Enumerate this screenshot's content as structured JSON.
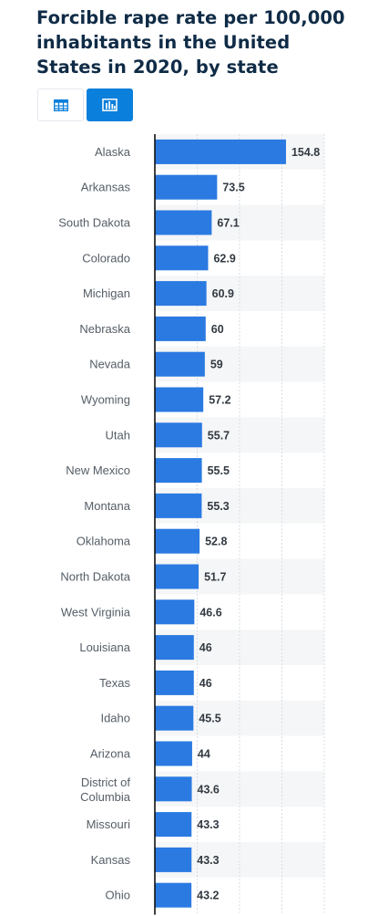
{
  "title": "Forcible rape rate per 100,000 inhabitants in the United States in 2020, by state",
  "view_toggle": {
    "table_icon": "table-icon",
    "bar_icon": "bar-chart-icon",
    "active": "bar"
  },
  "colors": {
    "bar": "#2a7ae2",
    "accent": "#0a7fdb",
    "title": "#0f2b46",
    "band": "#f5f6f7"
  },
  "chart_data": {
    "type": "bar",
    "orientation": "horizontal",
    "title": "Forcible rape rate per 100,000 inhabitants in the United States in 2020, by state",
    "xlabel": "",
    "ylabel": "",
    "xlim": [
      0,
      200
    ],
    "grid": true,
    "legend": "none",
    "categories": [
      "Alaska",
      "Arkansas",
      "South Dakota",
      "Colorado",
      "Michigan",
      "Nebraska",
      "Nevada",
      "Wyoming",
      "Utah",
      "New Mexico",
      "Montana",
      "Oklahoma",
      "North Dakota",
      "West Virginia",
      "Louisiana",
      "Texas",
      "Idaho",
      "Arizona",
      "District of Columbia",
      "Missouri",
      "Kansas",
      "Ohio"
    ],
    "values": [
      154.8,
      73.5,
      67.1,
      62.9,
      60.9,
      60,
      59,
      57.2,
      55.7,
      55.5,
      55.3,
      52.8,
      51.7,
      46.6,
      46,
      46,
      45.5,
      44,
      43.6,
      43.3,
      43.3,
      43.2
    ],
    "value_labels": [
      "154.8",
      "73.5",
      "67.1",
      "62.9",
      "60.9",
      "60",
      "59",
      "57.2",
      "55.7",
      "55.5",
      "55.3",
      "52.8",
      "51.7",
      "46.6",
      "46",
      "46",
      "45.5",
      "44",
      "43.6",
      "43.3",
      "43.3",
      "43.2"
    ]
  }
}
